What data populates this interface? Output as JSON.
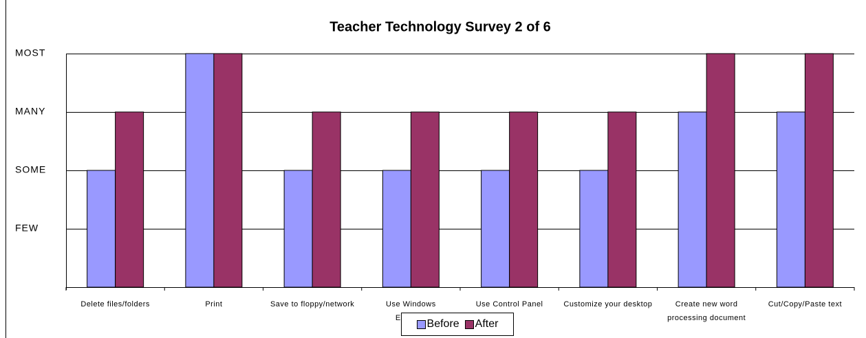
{
  "chart_data": {
    "type": "bar",
    "title": "Teacher Technology Survey 2 of 6",
    "categories": [
      "Delete files/folders",
      "Print",
      "Save to floppy/network",
      "Use Windows Explorer",
      "Use Control Panel",
      "Customize your desktop",
      "Create new word processing document",
      "Cut/Copy/Paste text"
    ],
    "series": [
      {
        "name": "Before",
        "color": "#9999ff",
        "values": [
          2,
          4,
          2,
          2,
          2,
          2,
          3,
          3
        ]
      },
      {
        "name": "After",
        "color": "#993366",
        "values": [
          3,
          4,
          3,
          3,
          3,
          3,
          4,
          4
        ]
      }
    ],
    "ylim": [
      0,
      4
    ],
    "yticks": [
      {
        "value": 1,
        "label": "FEW"
      },
      {
        "value": 2,
        "label": "SOME"
      },
      {
        "value": 3,
        "label": "MANY"
      },
      {
        "value": 4,
        "label": "MOST"
      }
    ],
    "grid": true,
    "legend": "bottom"
  }
}
